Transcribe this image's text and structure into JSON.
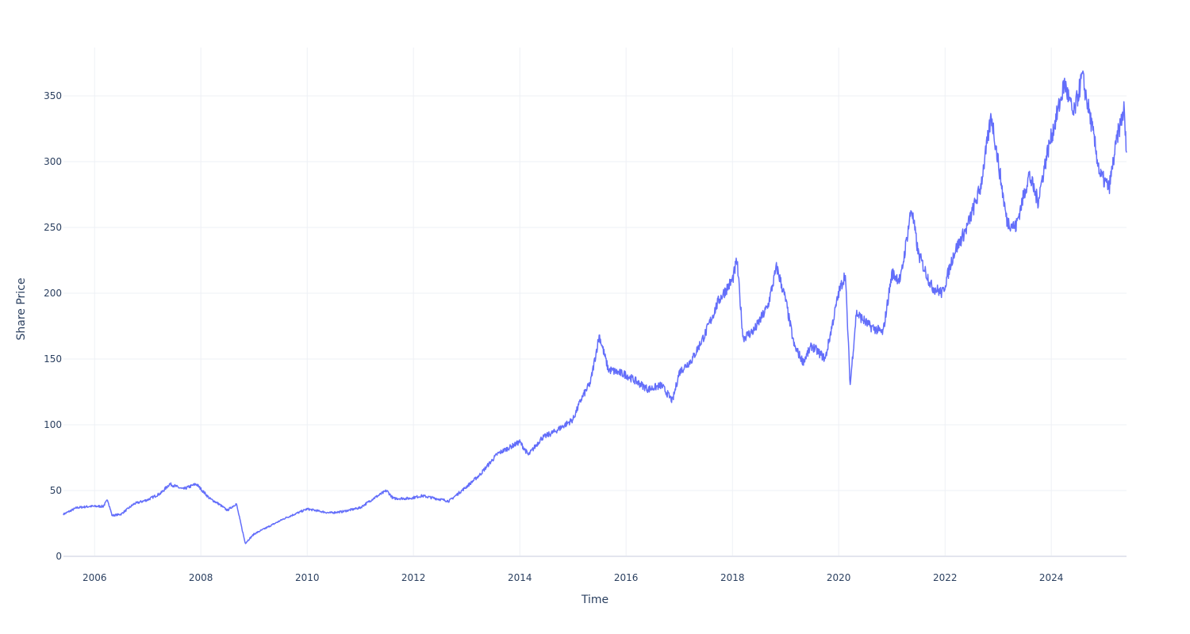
{
  "chart_data": {
    "type": "line",
    "title": "",
    "xlabel": "Time",
    "ylabel": "Share Price",
    "xlim": [
      "2005-06-01",
      "2025-06-01"
    ],
    "ylim": [
      -10,
      385
    ],
    "x_ticks": [
      "2006",
      "2008",
      "2010",
      "2012",
      "2014",
      "2016",
      "2018",
      "2020",
      "2022",
      "2024"
    ],
    "y_ticks": [
      0,
      50,
      100,
      150,
      200,
      250,
      300,
      350
    ],
    "grid": true,
    "line_color": "#636efa",
    "grid_color": "#eef0f5",
    "zero_line_color": "#e3e5ee",
    "tick_color": "#2a3f5f",
    "series": [
      {
        "x": [
          "2005-06-01",
          "2005-09-01",
          "2005-12-01",
          "2006-03-01",
          "2006-04-01",
          "2006-05-01",
          "2006-07-01",
          "2006-10-01",
          "2007-01-01",
          "2007-04-01",
          "2007-06-01",
          "2007-09-01",
          "2007-12-01",
          "2008-03-01",
          "2008-05-01",
          "2008-07-01",
          "2008-09-01",
          "2008-11-01",
          "2009-01-01",
          "2009-04-01",
          "2009-08-01",
          "2010-01-01",
          "2010-06-01",
          "2010-09-01",
          "2011-01-01",
          "2011-04-01",
          "2011-07-01",
          "2011-08-15",
          "2011-12-01",
          "2012-03-01",
          "2012-06-01",
          "2012-09-01",
          "2013-01-01",
          "2013-04-01",
          "2013-08-01",
          "2014-01-01",
          "2014-03-01",
          "2014-06-01",
          "2014-09-01",
          "2015-01-01",
          "2015-03-01",
          "2015-05-01",
          "2015-07-01",
          "2015-09-01",
          "2016-01-01",
          "2016-06-01",
          "2016-09-01",
          "2016-11-15",
          "2017-01-01",
          "2017-04-01",
          "2017-07-01",
          "2017-10-01",
          "2018-01-01",
          "2018-02-01",
          "2018-03-15",
          "2018-06-01",
          "2018-09-01",
          "2018-11-01",
          "2019-01-01",
          "2019-03-01",
          "2019-05-01",
          "2019-07-01",
          "2019-10-01",
          "2020-01-01",
          "2020-02-15",
          "2020-03-20",
          "2020-05-01",
          "2020-08-01",
          "2020-11-01",
          "2021-01-01",
          "2021-03-01",
          "2021-05-15",
          "2021-07-01",
          "2021-10-01",
          "2021-12-15",
          "2022-03-01",
          "2022-06-01",
          "2022-09-01",
          "2022-11-15",
          "2023-01-01",
          "2023-03-01",
          "2023-05-01",
          "2023-08-01",
          "2023-10-01",
          "2023-12-01",
          "2024-03-01",
          "2024-04-01",
          "2024-06-01",
          "2024-08-01",
          "2024-10-01",
          "2024-12-01",
          "2025-02-01",
          "2025-04-01",
          "2025-05-15",
          "2025-06-01"
        ],
        "y": [
          32,
          37,
          38,
          38,
          43,
          31,
          32,
          40,
          43,
          48,
          55,
          51,
          55,
          44,
          40,
          35,
          40,
          10,
          17,
          22,
          29,
          36,
          33,
          34,
          37,
          44,
          50,
          44,
          44,
          46,
          44,
          42,
          53,
          62,
          78,
          87,
          77,
          90,
          95,
          104,
          120,
          132,
          168,
          142,
          138,
          127,
          130,
          118,
          140,
          150,
          170,
          195,
          210,
          225,
          166,
          172,
          190,
          220,
          195,
          160,
          148,
          160,
          150,
          200,
          215,
          130,
          185,
          175,
          170,
          215,
          210,
          265,
          230,
          205,
          200,
          230,
          250,
          280,
          335,
          300,
          255,
          250,
          290,
          270,
          305,
          345,
          360,
          335,
          365,
          330,
          290,
          280,
          320,
          340,
          305
        ]
      }
    ]
  }
}
